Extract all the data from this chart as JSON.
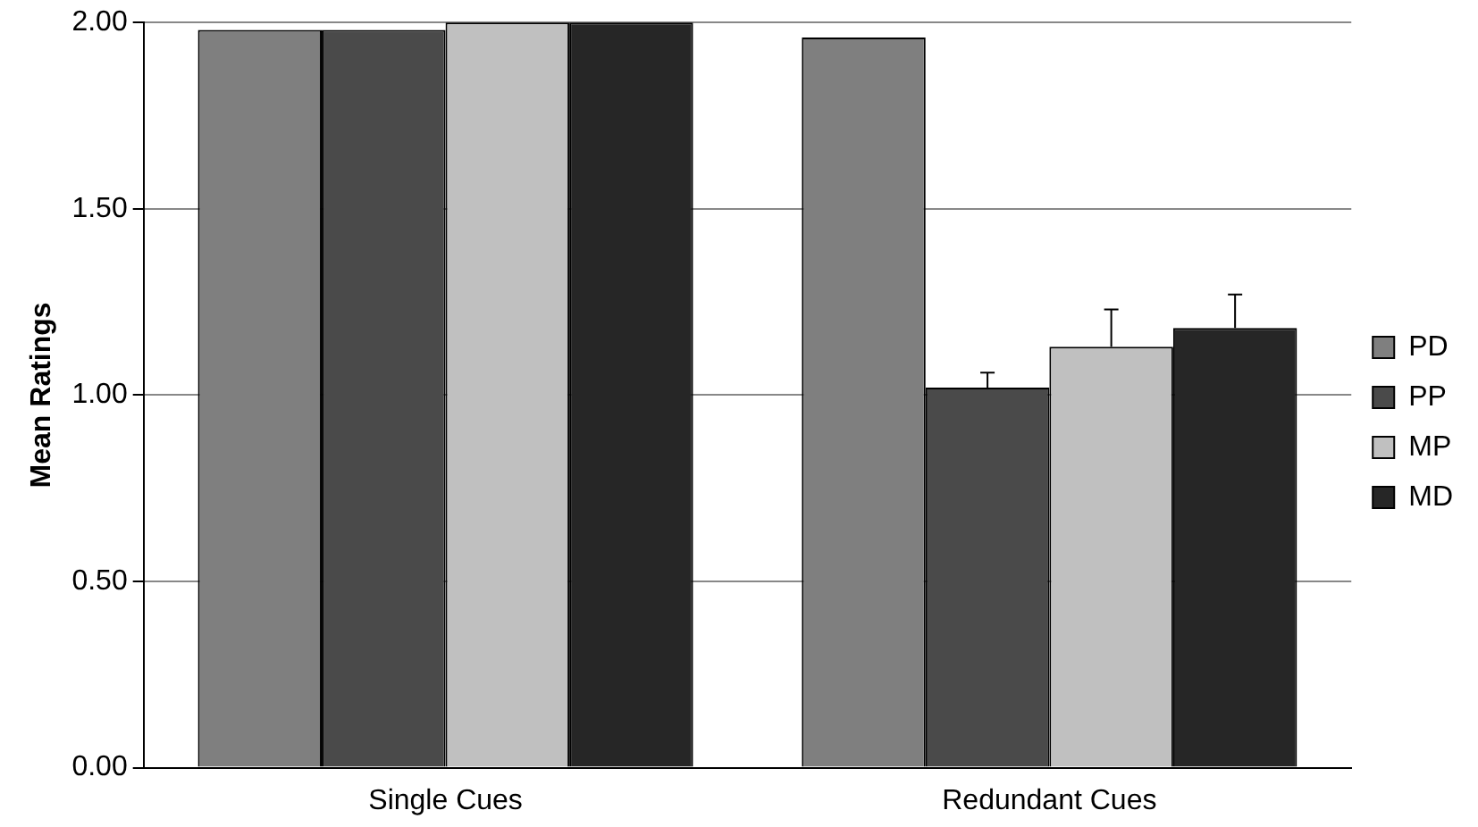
{
  "chart_data": {
    "type": "bar",
    "ylabel": "Mean Ratings",
    "categories": [
      "Single Cues",
      "Redundant Cues"
    ],
    "series": [
      {
        "name": "PD",
        "color": "#7f7f7f",
        "values": [
          1.98,
          1.96
        ]
      },
      {
        "name": "PP",
        "color": "#4a4a4a",
        "values": [
          1.98,
          1.02
        ],
        "errors": [
          null,
          [
            1.02,
            1.06
          ]
        ]
      },
      {
        "name": "MP",
        "color": "#c0c0c0",
        "values": [
          2.0,
          1.13
        ],
        "errors": [
          null,
          [
            1.13,
            1.23
          ]
        ]
      },
      {
        "name": "MD",
        "color": "#262626",
        "values": [
          2.0,
          1.18
        ],
        "errors": [
          null,
          [
            1.18,
            1.27
          ]
        ]
      }
    ],
    "ylim": [
      0,
      2
    ],
    "yticks": [
      {
        "value": 0,
        "label": "0.00"
      },
      {
        "value": 0.5,
        "label": "0.50"
      },
      {
        "value": 1,
        "label": "1.00"
      },
      {
        "value": 1.5,
        "label": "1.50"
      },
      {
        "value": 2,
        "label": "2.00"
      }
    ],
    "grid": "y",
    "legend": "right"
  }
}
